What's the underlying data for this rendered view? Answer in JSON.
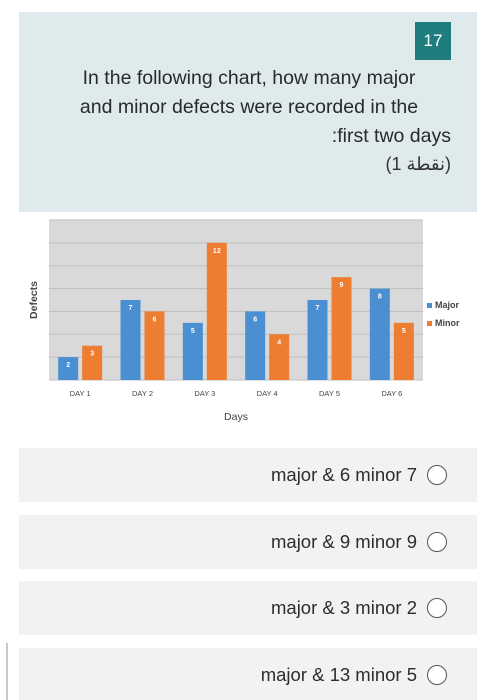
{
  "question": {
    "number": "17",
    "text_line1": "In the following chart, how many major",
    "text_line2": "and minor defects were recorded in the",
    "text_line3": ":first two days",
    "points": "(1 نقطة)"
  },
  "chart_data": {
    "type": "bar",
    "categories": [
      "DAY 1",
      "DAY 2",
      "DAY 3",
      "DAY 4",
      "DAY 5",
      "DAY 6"
    ],
    "series": [
      {
        "name": "Major",
        "values": [
          2,
          7,
          5,
          6,
          7,
          8
        ],
        "color": "#4a8fd1"
      },
      {
        "name": "Minor",
        "values": [
          3,
          6,
          12,
          4,
          9,
          5
        ],
        "color": "#ed7d31"
      }
    ],
    "xlabel": "Days",
    "ylabel": "Defects",
    "ylim": [
      0,
      14
    ],
    "grid": true,
    "legend": "right"
  },
  "options": [
    {
      "label": "major & 6 minor 7"
    },
    {
      "label": "major & 9 minor 9"
    },
    {
      "label": "major & 3 minor 2"
    },
    {
      "label": "major & 13 minor 5"
    }
  ]
}
